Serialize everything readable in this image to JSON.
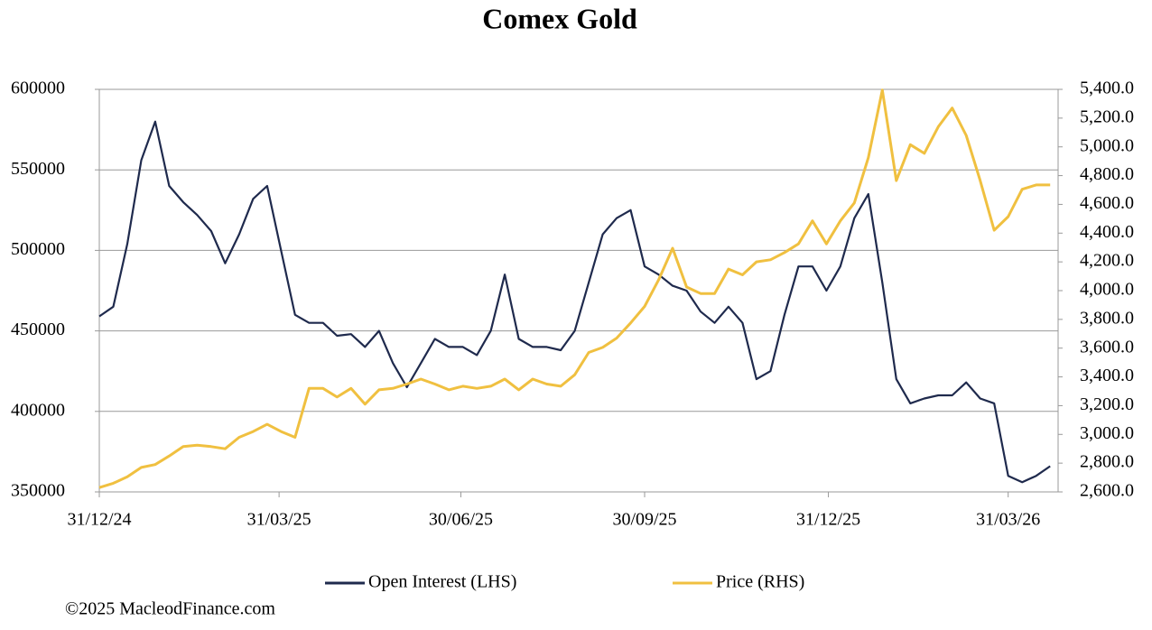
{
  "chart_data": {
    "type": "line",
    "title": "Comex Gold",
    "footer": "©2025 MacleodFinance.com",
    "x": [
      "2024-12-31",
      "2025-01-07",
      "2025-01-14",
      "2025-01-21",
      "2025-01-28",
      "2025-02-04",
      "2025-02-11",
      "2025-02-18",
      "2025-02-25",
      "2025-03-04",
      "2025-03-11",
      "2025-03-18",
      "2025-03-25",
      "2025-04-01",
      "2025-04-08",
      "2025-04-15",
      "2025-04-22",
      "2025-04-29",
      "2025-05-06",
      "2025-05-13",
      "2025-05-20",
      "2025-05-27",
      "2025-06-03",
      "2025-06-10",
      "2025-06-17",
      "2025-06-24",
      "2025-07-01",
      "2025-07-08",
      "2025-07-15",
      "2025-07-22",
      "2025-07-29",
      "2025-08-05",
      "2025-08-12",
      "2025-08-19",
      "2025-08-26",
      "2025-09-02",
      "2025-09-09",
      "2025-09-16",
      "2025-09-23",
      "2025-09-30",
      "2025-10-07",
      "2025-10-14",
      "2025-10-21",
      "2025-10-28",
      "2025-11-04",
      "2025-11-11",
      "2025-11-18",
      "2025-11-25",
      "2025-12-02",
      "2025-12-09",
      "2025-12-16",
      "2025-12-23",
      "2025-12-30",
      "2026-01-06",
      "2026-01-13",
      "2026-01-20",
      "2026-01-27",
      "2026-02-03",
      "2026-02-10",
      "2026-02-17",
      "2026-02-24",
      "2026-03-03",
      "2026-03-10",
      "2026-03-17",
      "2026-03-24",
      "2026-03-31",
      "2026-04-07",
      "2026-04-14",
      "2026-04-21"
    ],
    "series": [
      {
        "name": "Open Interest (LHS)",
        "color": "#1f2a4d",
        "axis": "y",
        "values": [
          459000,
          465000,
          504000,
          556000,
          580000,
          540000,
          530000,
          522000,
          512000,
          492000,
          510000,
          532000,
          540000,
          500000,
          460000,
          455000,
          455000,
          447000,
          448000,
          440000,
          450000,
          430000,
          415000,
          430000,
          445000,
          440000,
          440000,
          435000,
          450000,
          485000,
          445000,
          440000,
          440000,
          438000,
          450000,
          480000,
          510000,
          520000,
          525000,
          490000,
          485000,
          478000,
          475000,
          462000,
          455000,
          465000,
          455000,
          420000,
          425000,
          460000,
          490000,
          490000,
          475000,
          490000,
          520000,
          535000,
          480000,
          420000,
          405000,
          408000,
          410000,
          410000,
          418000,
          408000,
          405000,
          360000,
          356000,
          360000,
          366000
        ]
      },
      {
        "name": "Price (RHS)",
        "color": "#f0c040",
        "axis": "y2",
        "values": [
          2630,
          2660,
          2705,
          2770,
          2790,
          2850,
          2915,
          2925,
          2915,
          2900,
          2980,
          3020,
          3070,
          3020,
          2980,
          3320,
          3320,
          3260,
          3320,
          3210,
          3310,
          3320,
          3350,
          3385,
          3350,
          3310,
          3335,
          3320,
          3335,
          3385,
          3310,
          3385,
          3350,
          3335,
          3415,
          3570,
          3605,
          3670,
          3775,
          3890,
          4075,
          4295,
          4025,
          3980,
          3980,
          4150,
          4110,
          4200,
          4215,
          4265,
          4325,
          4485,
          4325,
          4485,
          4610,
          4925,
          5395,
          4765,
          5015,
          4955,
          5140,
          5270,
          5080,
          4765,
          4420,
          4515,
          4705,
          4735,
          4735
        ]
      }
    ],
    "xlim": [
      "2024-12-31",
      "2026-04-25"
    ],
    "xticks": [
      {
        "value": "2024-12-31",
        "label": "31/12/24"
      },
      {
        "value": "2025-03-31",
        "label": "31/03/25"
      },
      {
        "value": "2025-06-30",
        "label": "30/06/25"
      },
      {
        "value": "2025-09-30",
        "label": "30/09/25"
      },
      {
        "value": "2025-12-31",
        "label": "31/12/25"
      },
      {
        "value": "2026-03-31",
        "label": "31/03/26"
      }
    ],
    "ylim": [
      350000,
      600000
    ],
    "yticks": [
      350000,
      400000,
      450000,
      500000,
      550000,
      600000
    ],
    "y2lim": [
      2600,
      5400
    ],
    "y2ticks": [
      {
        "value": 2600,
        "label": "2,600.0"
      },
      {
        "value": 2800,
        "label": "2,800.0"
      },
      {
        "value": 3000,
        "label": "3,000.0"
      },
      {
        "value": 3200,
        "label": "3,200.0"
      },
      {
        "value": 3400,
        "label": "3,400.0"
      },
      {
        "value": 3600,
        "label": "3,600.0"
      },
      {
        "value": 3800,
        "label": "3,800.0"
      },
      {
        "value": 4000,
        "label": "4,000.0"
      },
      {
        "value": 4200,
        "label": "4,200.0"
      },
      {
        "value": 4400,
        "label": "4,400.0"
      },
      {
        "value": 4600,
        "label": "4,600.0"
      },
      {
        "value": 4800,
        "label": "4,800.0"
      },
      {
        "value": 5000,
        "label": "5,000.0"
      },
      {
        "value": 5200,
        "label": "5,200.0"
      },
      {
        "value": 5400,
        "label": "5,400.0"
      }
    ],
    "grid": true,
    "legend": "bottom"
  }
}
